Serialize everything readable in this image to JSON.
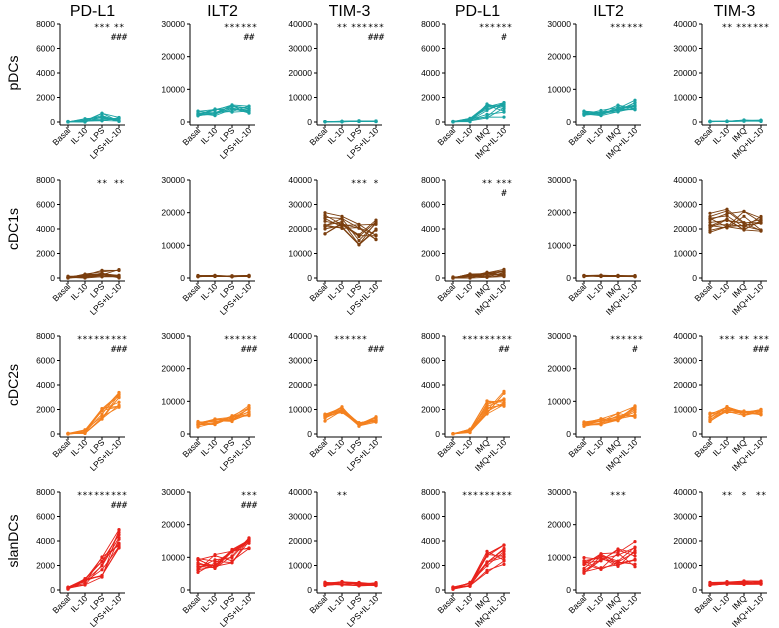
{
  "colors": {
    "pDCs": "#1aa3a3",
    "cDC1s": "#7a3e0e",
    "cDC2s": "#f4811f",
    "slanDCs": "#e8221b"
  },
  "chart_data": {
    "type": "line",
    "column_titles": [
      "PD-L1",
      "ILT2",
      "TIM-3",
      "PD-L1",
      "ILT2",
      "TIM-3"
    ],
    "row_titles": [
      "pDCs",
      "cDC1s",
      "cDC2s",
      "slanDCs"
    ],
    "categories_left": [
      "Basal",
      "IL-10",
      "LPS",
      "LPS+IL-10"
    ],
    "categories_right": [
      "Basal",
      "IL-10",
      "IMQ",
      "IMQ+IL-10"
    ],
    "ylim_by_column": [
      [
        0,
        8000
      ],
      [
        0,
        30000
      ],
      [
        0,
        40000
      ],
      [
        0,
        8000
      ],
      [
        0,
        30000
      ],
      [
        0,
        40000
      ]
    ],
    "yticks_by_column": [
      [
        0,
        2000,
        4000,
        6000,
        8000
      ],
      [
        0,
        10000,
        20000,
        30000
      ],
      [
        0,
        10000,
        20000,
        30000,
        40000
      ],
      [
        0,
        2000,
        4000,
        6000,
        8000
      ],
      [
        0,
        10000,
        20000,
        30000
      ],
      [
        0,
        10000,
        20000,
        30000,
        40000
      ]
    ],
    "panels": [
      {
        "row": 0,
        "col": 0,
        "sig": [
          "",
          "",
          "***",
          "**"
        ],
        "sig2": [
          "",
          "",
          "",
          "###"
        ],
        "base": [
          30,
          120,
          400,
          180
        ],
        "spread": [
          40,
          150,
          350,
          200
        ]
      },
      {
        "row": 0,
        "col": 1,
        "sig": [
          "",
          "",
          "***",
          "***"
        ],
        "sig2": [
          "",
          "",
          "",
          "##"
        ],
        "base": [
          2600,
          3000,
          4300,
          3700
        ],
        "spread": [
          800,
          1100,
          1300,
          1200
        ]
      },
      {
        "row": 0,
        "col": 2,
        "sig": [
          "",
          "**",
          "***",
          "***"
        ],
        "sig2": [
          "",
          "",
          "",
          "###"
        ],
        "base": [
          150,
          200,
          350,
          300
        ],
        "spread": [
          60,
          80,
          150,
          120
        ]
      },
      {
        "row": 0,
        "col": 3,
        "sig": [
          "",
          "",
          "***",
          "***"
        ],
        "sig2": [
          "",
          "",
          "",
          "#"
        ],
        "base": [
          30,
          150,
          900,
          1000
        ],
        "spread": [
          40,
          150,
          600,
          700
        ]
      },
      {
        "row": 0,
        "col": 4,
        "sig": [
          "",
          "",
          "***",
          "***"
        ],
        "sig2": [
          "",
          "",
          "",
          ""
        ],
        "base": [
          2700,
          2800,
          4200,
          5200
        ],
        "spread": [
          700,
          900,
          1200,
          1500
        ]
      },
      {
        "row": 0,
        "col": 5,
        "sig": [
          "",
          "**",
          "***",
          "***"
        ],
        "sig2": [
          "",
          "",
          "",
          ""
        ],
        "base": [
          200,
          250,
          600,
          500
        ],
        "spread": [
          80,
          100,
          300,
          250
        ]
      },
      {
        "row": 1,
        "col": 0,
        "sig": [
          "",
          "",
          "**",
          "**"
        ],
        "sig2": [
          "",
          "",
          "",
          ""
        ],
        "base": [
          50,
          150,
          350,
          350
        ],
        "spread": [
          120,
          200,
          300,
          350
        ]
      },
      {
        "row": 1,
        "col": 1,
        "sig": [
          "",
          "",
          "",
          ""
        ],
        "sig2": [
          "",
          "",
          "",
          ""
        ],
        "base": [
          600,
          650,
          550,
          600
        ],
        "spread": [
          200,
          200,
          200,
          200
        ]
      },
      {
        "row": 1,
        "col": 2,
        "sig": [
          "",
          "",
          "***",
          "*"
        ],
        "sig2": [
          "",
          "",
          "",
          ""
        ],
        "base": [
          22000,
          22500,
          18000,
          20000
        ],
        "spread": [
          5000,
          4500,
          4500,
          5000
        ]
      },
      {
        "row": 1,
        "col": 3,
        "sig": [
          "",
          "",
          "**",
          "***"
        ],
        "sig2": [
          "",
          "",
          "",
          "#"
        ],
        "base": [
          50,
          150,
          300,
          450
        ],
        "spread": [
          120,
          180,
          250,
          350
        ]
      },
      {
        "row": 1,
        "col": 4,
        "sig": [
          "",
          "",
          "",
          ""
        ],
        "sig2": [
          "",
          "",
          "",
          ""
        ],
        "base": [
          600,
          650,
          600,
          550
        ],
        "spread": [
          200,
          200,
          200,
          200
        ]
      },
      {
        "row": 1,
        "col": 5,
        "sig": [
          "",
          "",
          "",
          ""
        ],
        "sig2": [
          "",
          "",
          "",
          ""
        ],
        "base": [
          23000,
          24000,
          23500,
          22500
        ],
        "spread": [
          5000,
          4500,
          4500,
          4500
        ]
      },
      {
        "row": 2,
        "col": 0,
        "sig": [
          "",
          "***",
          "***",
          "***"
        ],
        "sig2": [
          "",
          "",
          "",
          "###"
        ],
        "base": [
          20,
          200,
          1700,
          2800
        ],
        "spread": [
          30,
          150,
          600,
          700
        ]
      },
      {
        "row": 2,
        "col": 1,
        "sig": [
          "",
          "",
          "***",
          "***"
        ],
        "sig2": [
          "",
          "",
          "",
          "###"
        ],
        "base": [
          3000,
          3700,
          4800,
          7200
        ],
        "spread": [
          900,
          1000,
          1200,
          1600
        ]
      },
      {
        "row": 2,
        "col": 2,
        "sig": [
          "",
          "***",
          "***",
          ""
        ],
        "sig2": [
          "",
          "",
          "",
          "###"
        ],
        "base": [
          6500,
          10000,
          4000,
          6000
        ],
        "spread": [
          1700,
          1300,
          900,
          1200
        ]
      },
      {
        "row": 2,
        "col": 3,
        "sig": [
          "",
          "***",
          "***",
          "***"
        ],
        "sig2": [
          "",
          "",
          "",
          "##"
        ],
        "base": [
          20,
          250,
          2200,
          2800
        ],
        "spread": [
          30,
          150,
          600,
          700
        ]
      },
      {
        "row": 2,
        "col": 4,
        "sig": [
          "",
          "",
          "***",
          "***"
        ],
        "sig2": [
          "",
          "",
          "",
          "#"
        ],
        "base": [
          3000,
          3800,
          5200,
          7000
        ],
        "spread": [
          900,
          1000,
          1200,
          1900
        ]
      },
      {
        "row": 2,
        "col": 5,
        "sig": [
          "",
          "***",
          "**",
          "***"
        ],
        "sig2": [
          "",
          "",
          "",
          "###"
        ],
        "base": [
          6800,
          10000,
          8300,
          9000
        ],
        "spread": [
          1700,
          1300,
          1100,
          1200
        ]
      },
      {
        "row": 3,
        "col": 0,
        "sig": [
          "",
          "***",
          "***",
          "***"
        ],
        "sig2": [
          "",
          "",
          "",
          "###"
        ],
        "base": [
          150,
          700,
          1900,
          4200
        ],
        "spread": [
          100,
          300,
          900,
          800
        ]
      },
      {
        "row": 3,
        "col": 1,
        "sig": [
          "",
          "",
          "",
          "***"
        ],
        "sig2": [
          "",
          "",
          "",
          "###"
        ],
        "base": [
          7200,
          9000,
          10500,
          14000
        ],
        "spread": [
          2500,
          3000,
          2200,
          2500
        ]
      },
      {
        "row": 3,
        "col": 2,
        "sig": [
          "",
          "**",
          "",
          ""
        ],
        "sig2": [
          "",
          "",
          "",
          ""
        ],
        "base": [
          2500,
          2800,
          2300,
          2500
        ],
        "spread": [
          700,
          800,
          800,
          800
        ]
      },
      {
        "row": 3,
        "col": 3,
        "sig": [
          "",
          "***",
          "***",
          "***"
        ],
        "sig2": [
          "",
          "",
          "",
          ""
        ],
        "base": [
          150,
          500,
          2300,
          2900
        ],
        "spread": [
          100,
          200,
          1100,
          900
        ]
      },
      {
        "row": 3,
        "col": 4,
        "sig": [
          "",
          "",
          "***",
          ""
        ],
        "sig2": [
          "",
          "",
          "",
          ""
        ],
        "base": [
          7500,
          8500,
          10000,
          11000
        ],
        "spread": [
          2500,
          3000,
          3000,
          4000
        ]
      },
      {
        "row": 3,
        "col": 5,
        "sig": [
          "",
          "**",
          "*",
          "**"
        ],
        "sig2": [
          "",
          "",
          "",
          ""
        ],
        "base": [
          2500,
          2900,
          3000,
          3000
        ],
        "spread": [
          600,
          700,
          800,
          700
        ]
      }
    ],
    "n_donors": 12
  }
}
